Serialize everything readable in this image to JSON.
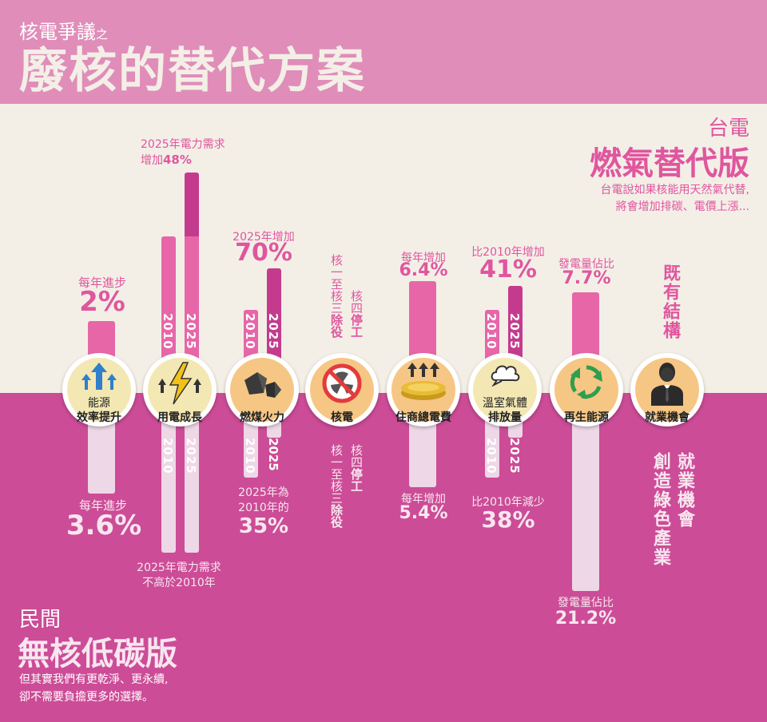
{
  "header": {
    "small_title": "核電爭議",
    "small_title_suffix": "之",
    "big_title": "廢核的替代方案"
  },
  "taipower": {
    "label": "台電",
    "version": "燃氣替代版",
    "desc_1": "台電說如果核能用天然氣代替,",
    "desc_2": "將會增加排碳、電價上漲..."
  },
  "civil": {
    "label": "民間",
    "version": "無核低碳版",
    "desc_1": "但其實我們有更乾淨、更永續,",
    "desc_2": "卻不需要負擔更多的選擇。"
  },
  "years": {
    "y2010": "2010",
    "y2025": "2025"
  },
  "items": [
    {
      "name_1": "能源",
      "name_2": "效率提升",
      "top_label": "每年進步",
      "top_value": "2%",
      "bottom_label": "每年進步",
      "bottom_value": "3.6%"
    },
    {
      "name_1": "",
      "name_2": "用電成長",
      "top_label_1": "2025年電力需求",
      "top_label_2": "增加",
      "top_value": "48%",
      "bottom_label_1": "2025年電力需求",
      "bottom_label_2": "不高於2010年"
    },
    {
      "name_1": "",
      "name_2": "燃煤火力",
      "top_label": "2025年增加",
      "top_value": "70%",
      "bottom_label_1": "2025年為",
      "bottom_label_2": "2010年的",
      "bottom_value": "35%"
    },
    {
      "name_1": "",
      "name_2": "核電",
      "top_col_a_1": "核一至核三",
      "top_col_a_2": "除役",
      "top_col_b_1": "核四",
      "top_col_b_2": "停工",
      "bottom_col_a_1": "核一至核三",
      "bottom_col_a_2": "除役",
      "bottom_col_b_1": "核四",
      "bottom_col_b_2": "停工"
    },
    {
      "name_1": "",
      "name_2": "住商總電費",
      "top_label": "每年增加",
      "top_value": "6.4%",
      "bottom_label": "每年增加",
      "bottom_value": "5.4%"
    },
    {
      "name_1": "溫室氣體",
      "name_2": "排放量",
      "top_label": "比2010年增加",
      "top_value": "41%",
      "bottom_label": "比2010年減少",
      "bottom_value": "38%"
    },
    {
      "name_1": "",
      "name_2": "再生能源",
      "top_label": "發電量佔比",
      "top_value": "7.7%",
      "bottom_label": "發電量佔比",
      "bottom_value": "21.2%"
    },
    {
      "name_1": "",
      "name_2": "就業機會",
      "top_text": "既有結構",
      "bottom_col_a": "就業機會",
      "bottom_col_b": "創造綠色產業"
    }
  ],
  "bar_data": {
    "efficiency_2pct_vs_3_6pct": [
      2,
      3.6
    ],
    "demand_2025_vs_2010_pct": [
      148,
      100
    ],
    "coal_2025_pct_of_2010_taipower": 170,
    "coal_2025_pct_of_2010_civil": 35,
    "renewable_share_pct": [
      7.7,
      21.2
    ]
  },
  "colors": {
    "top_band": "#E08DB9",
    "mid_band": "#F3EFE7",
    "bottom_band": "#CC4C97",
    "accent_pink": "#E0569E",
    "bar_up": "#E766A8",
    "bar_up_dark": "#C43B8E",
    "bar_down": "#EED7E6"
  }
}
